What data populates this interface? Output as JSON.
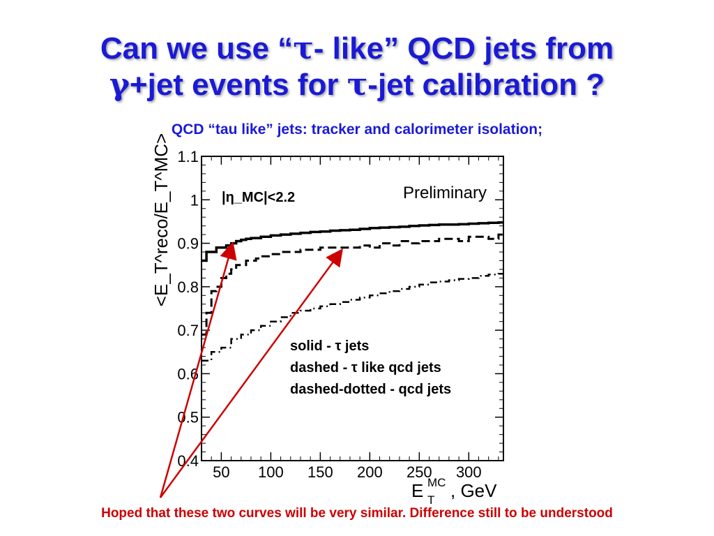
{
  "slide": {
    "title_line1_a": "Can we use “",
    "title_line1_tau": "τ",
    "title_line1_b": "- like” QCD jets from",
    "title_line2_gamma": "γ",
    "title_line2_a": "+jet events for ",
    "title_line2_tau": "τ",
    "title_line2_b": "-jet calibration ?",
    "subtitle": "QCD “tau like” jets:  tracker and calorimeter isolation;",
    "footnote": "Hoped that these two curves will be very similar. Difference still to be understood"
  },
  "colors": {
    "title": "#1a1ad6",
    "footnote": "#cc0000",
    "arrows": "#cc0000",
    "curves": "#000000"
  },
  "chart_data": {
    "type": "line",
    "xlim": [
      30,
      335
    ],
    "ylim": [
      0.4,
      1.1
    ],
    "x_ticks": [
      50,
      100,
      150,
      200,
      250,
      300
    ],
    "y_ticks": [
      0.4,
      0.5,
      0.6,
      0.7,
      0.8,
      0.9,
      1,
      1.1
    ],
    "x_tick_labels": [
      "50",
      "100",
      "150",
      "200",
      "250",
      "300"
    ],
    "y_tick_labels": [
      "0.4",
      "0.5",
      "0.6",
      "0.7",
      "0.8",
      "0.9",
      "1",
      "1.1"
    ],
    "xlabel_main": "E",
    "xlabel_sup": "MC",
    "xlabel_sub": "T",
    "xlabel_unit": ", GeV",
    "ylabel": "<E_T^reco/E_T^MC>",
    "annotation_eta": "|η_MC|<2.2",
    "preliminary": "Preliminary",
    "legend": [
      "solid - τ jets",
      "dashed - τ like qcd jets",
      "dashed-dotted - qcd jets"
    ],
    "legend_placement": "bottom-right",
    "series": [
      {
        "style": "solid",
        "x": [
          30,
          35,
          40,
          45,
          50,
          55,
          60,
          65,
          70,
          75,
          80,
          90,
          100,
          110,
          120,
          130,
          140,
          150,
          160,
          170,
          180,
          190,
          200,
          210,
          220,
          230,
          240,
          250,
          260,
          270,
          280,
          290,
          300,
          310,
          320,
          330,
          335
        ],
        "y": [
          0.86,
          0.88,
          0.88,
          0.89,
          0.89,
          0.895,
          0.9,
          0.905,
          0.908,
          0.91,
          0.912,
          0.915,
          0.918,
          0.92,
          0.922,
          0.924,
          0.926,
          0.927,
          0.929,
          0.93,
          0.931,
          0.933,
          0.935,
          0.936,
          0.937,
          0.938,
          0.94,
          0.941,
          0.942,
          0.943,
          0.943,
          0.944,
          0.945,
          0.946,
          0.947,
          0.948,
          0.948
        ]
      },
      {
        "style": "dashed",
        "x": [
          30,
          35,
          40,
          45,
          50,
          55,
          60,
          65,
          70,
          75,
          80,
          85,
          90,
          100,
          110,
          120,
          130,
          140,
          150,
          160,
          170,
          180,
          190,
          200,
          210,
          220,
          230,
          240,
          250,
          260,
          270,
          280,
          290,
          300,
          310,
          320,
          330
        ],
        "y": [
          0.69,
          0.74,
          0.79,
          0.8,
          0.82,
          0.83,
          0.84,
          0.85,
          0.85,
          0.86,
          0.86,
          0.865,
          0.87,
          0.875,
          0.88,
          0.88,
          0.885,
          0.885,
          0.89,
          0.89,
          0.89,
          0.89,
          0.895,
          0.89,
          0.9,
          0.895,
          0.905,
          0.9,
          0.905,
          0.905,
          0.91,
          0.91,
          0.905,
          0.915,
          0.915,
          0.91,
          0.92
        ]
      },
      {
        "style": "dashdot",
        "x": [
          30,
          40,
          50,
          60,
          70,
          80,
          90,
          100,
          110,
          120,
          130,
          140,
          150,
          160,
          170,
          180,
          190,
          200,
          210,
          220,
          230,
          240,
          250,
          260,
          270,
          280,
          290,
          300,
          310,
          320,
          330
        ],
        "y": [
          0.63,
          0.65,
          0.66,
          0.68,
          0.69,
          0.7,
          0.71,
          0.72,
          0.73,
          0.74,
          0.745,
          0.75,
          0.755,
          0.76,
          0.765,
          0.77,
          0.775,
          0.78,
          0.785,
          0.79,
          0.795,
          0.8,
          0.805,
          0.81,
          0.812,
          0.815,
          0.818,
          0.82,
          0.825,
          0.828,
          0.83
        ]
      }
    ]
  }
}
